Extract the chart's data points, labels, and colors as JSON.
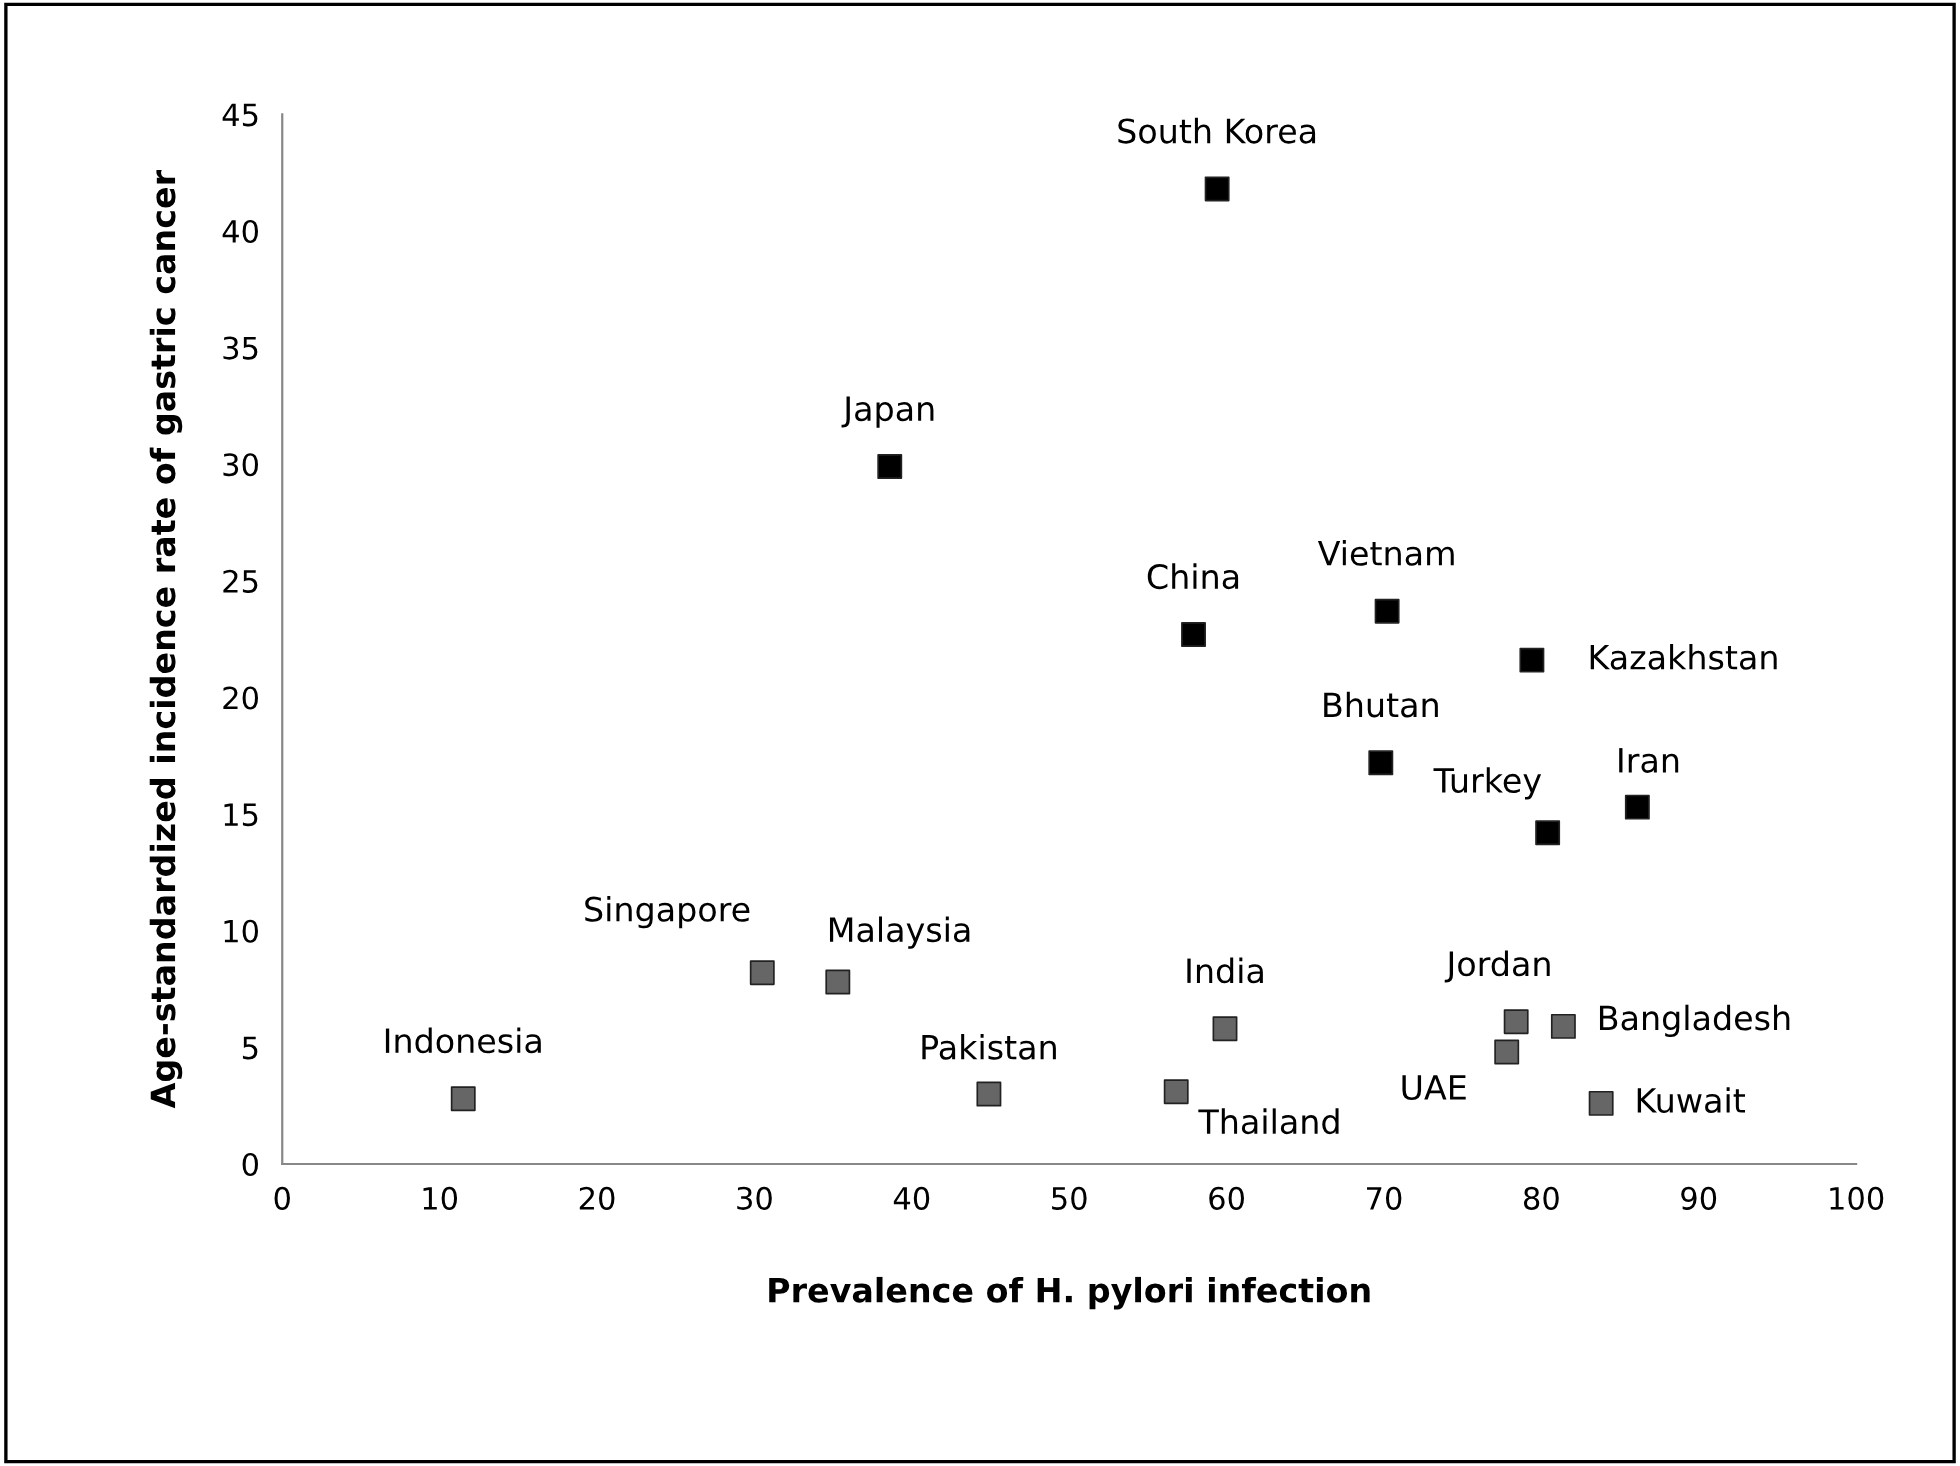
{
  "chart_data": {
    "type": "scatter",
    "xlabel": "Prevalence of H. pylori infection",
    "ylabel": "Age-standardized incidence rate of gastric cancer",
    "series": [
      {
        "color": "#000000",
        "marker": "square",
        "x": [
          59.4,
          38.6,
          57.9,
          70.2,
          79.4,
          69.8,
          80.4,
          86.1
        ],
        "values": [
          41.8,
          29.9,
          22.7,
          23.7,
          21.6,
          17.2,
          14.2,
          15.3
        ]
      },
      {
        "color": "#666666",
        "marker": "square",
        "x": [
          11.5,
          30.5,
          35.3,
          44.9,
          56.8,
          59.9,
          78.4,
          81.4,
          77.8,
          83.8
        ],
        "values": [
          2.8,
          8.2,
          7.8,
          3.0,
          3.1,
          5.8,
          6.1,
          5.9,
          4.8,
          2.6
        ]
      }
    ],
    "annotations": [
      {
        "text": "South Korea",
        "x": 59.4,
        "y": 41.8
      },
      {
        "text": "Japan",
        "x": 38.6,
        "y": 29.9
      },
      {
        "text": "China",
        "x": 57.9,
        "y": 22.7
      },
      {
        "text": "Vietnam",
        "x": 70.2,
        "y": 23.7
      },
      {
        "text": "Kazakhstan",
        "x": 79.4,
        "y": 21.6
      },
      {
        "text": "Bhutan",
        "x": 69.8,
        "y": 17.2
      },
      {
        "text": "Turkey",
        "x": 80.4,
        "y": 14.2
      },
      {
        "text": "Iran",
        "x": 86.1,
        "y": 15.3
      },
      {
        "text": "Indonesia",
        "x": 11.5,
        "y": 2.8
      },
      {
        "text": "Singapore",
        "x": 30.5,
        "y": 8.2
      },
      {
        "text": "Malaysia",
        "x": 35.3,
        "y": 7.8
      },
      {
        "text": "Pakistan",
        "x": 44.9,
        "y": 3.0
      },
      {
        "text": "Thailand",
        "x": 56.8,
        "y": 3.1
      },
      {
        "text": "India",
        "x": 59.9,
        "y": 5.8
      },
      {
        "text": "Jordan",
        "x": 78.4,
        "y": 6.1
      },
      {
        "text": "Bangladesh",
        "x": 81.4,
        "y": 5.9
      },
      {
        "text": "UAE",
        "x": 77.8,
        "y": 4.8
      },
      {
        "text": "Kuwait",
        "x": 83.8,
        "y": 2.6
      }
    ],
    "xlim": [
      0,
      100
    ],
    "xticks": [
      0,
      10,
      20,
      30,
      40,
      50,
      60,
      70,
      80,
      90,
      100
    ],
    "ylim": [
      0,
      45
    ],
    "yticks": [
      0,
      5,
      10,
      15,
      20,
      25,
      30,
      35,
      40,
      45
    ],
    "grid": false,
    "legend": false
  }
}
